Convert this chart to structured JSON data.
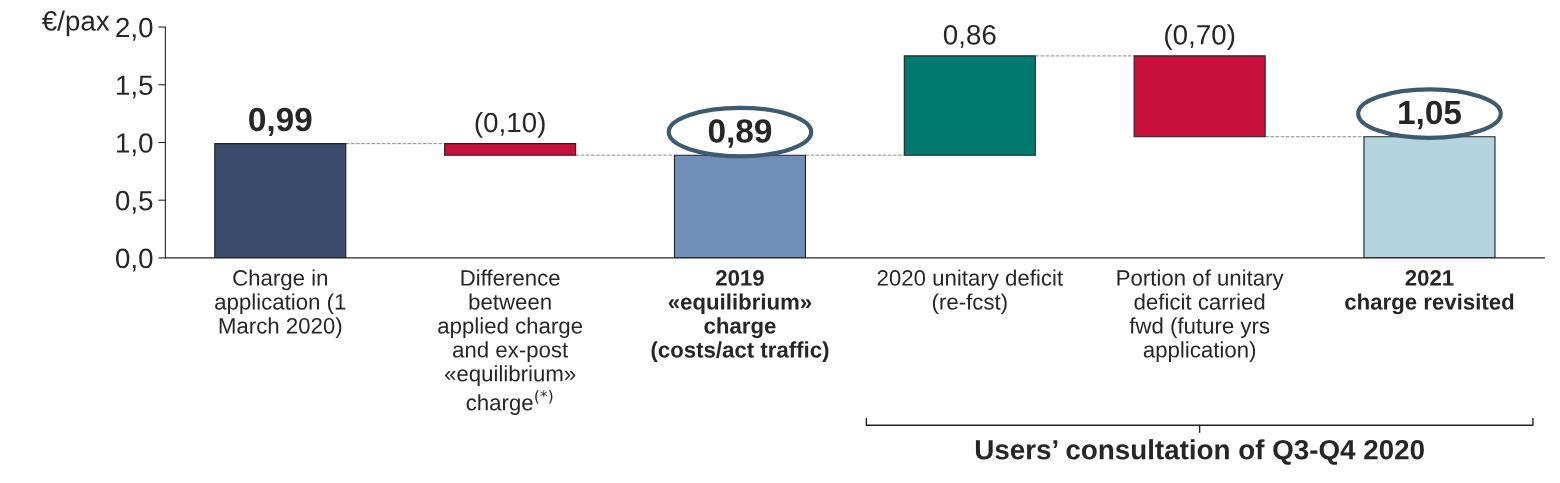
{
  "chart_data": {
    "type": "bar",
    "ylabel": "€/pax",
    "categories": [
      "Charge in\napplication (1\nMarch 2020)",
      "Difference\nbetween\napplied charge\nand ex-post\n«equilibrium»\ncharge$^{(*)}$",
      "2019\n«equilibrium»\ncharge\n(costs/act traffic)",
      "2020 unitary deficit\n(re-fcst)",
      "Portion of unitary\ndeficit carried\nfwd (future yrs\napplication)",
      "2021\ncharge revisited"
    ],
    "values": [
      0.99,
      -0.1,
      0.89,
      0.86,
      -0.7,
      1.05
    ],
    "base": [
      0,
      0.99,
      0,
      0.89,
      1.75,
      0
    ],
    "colors": [
      "#3a4c6b",
      "#c8103c",
      "#6f8fba",
      "#007a6e",
      "#c8103c",
      "#b3d4de"
    ],
    "value_labels": [
      "0,99",
      "(0,10)",
      "0,89",
      "0,86",
      "(0,70)",
      "1,05"
    ],
    "ylim": [
      0,
      2.0
    ],
    "yticks": [
      {
        "value": 0,
        "label": "0,0"
      },
      {
        "value": 0.5,
        "label": "0,5"
      },
      {
        "value": 1.0,
        "label": "1,0"
      },
      {
        "value": 1.5,
        "label": "1,5"
      },
      {
        "value": 2.0,
        "label": "2,0"
      }
    ],
    "annotations": [
      "Users’ consultation of Q3-Q4 2020"
    ],
    "grid": false
  }
}
